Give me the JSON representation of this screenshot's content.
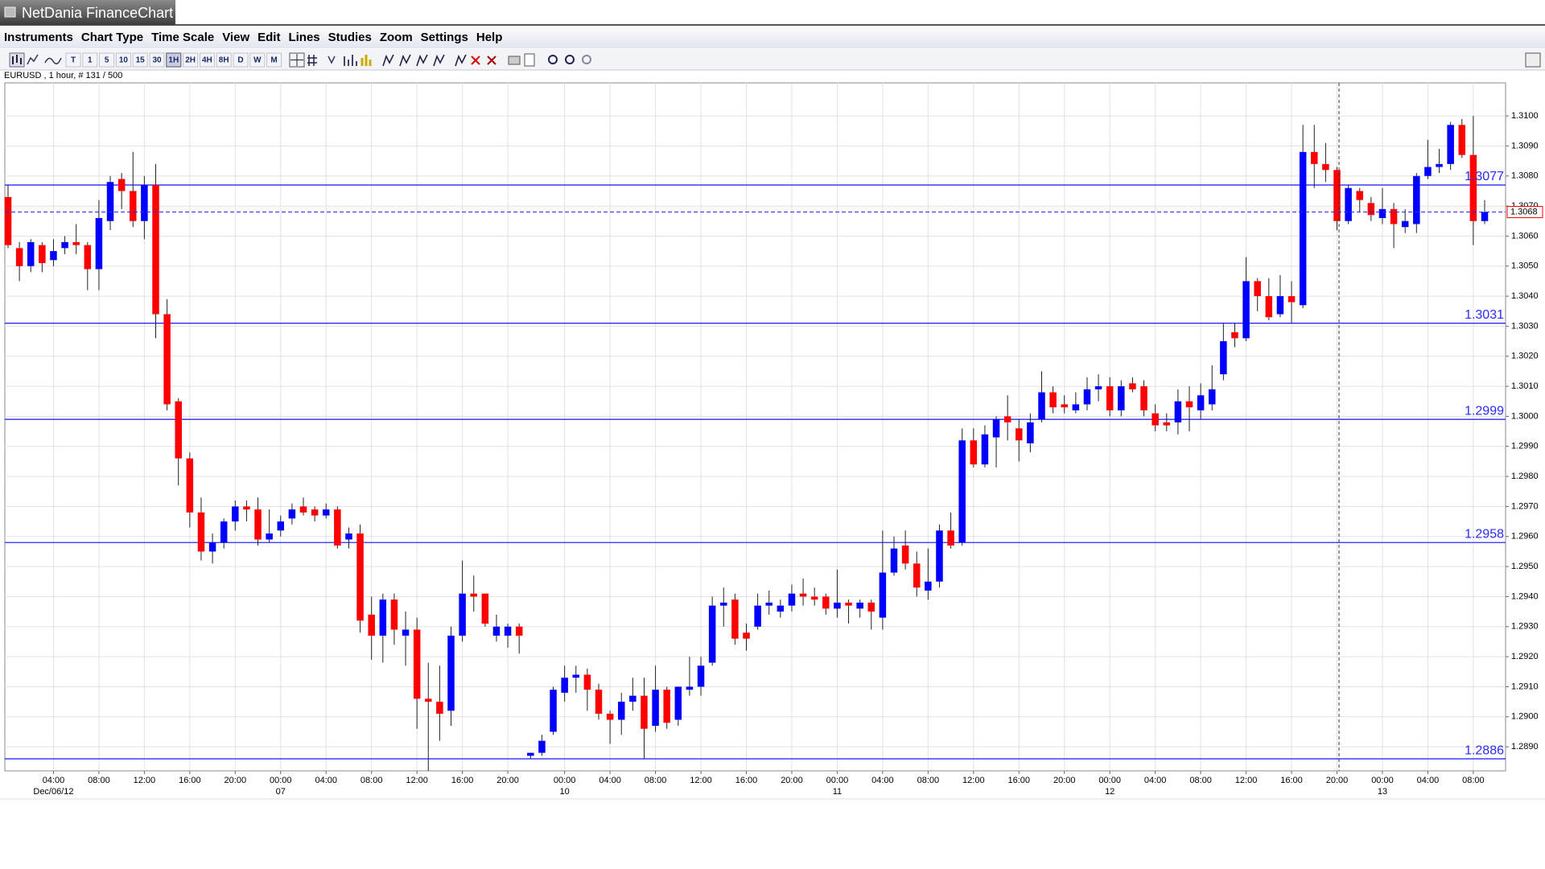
{
  "window": {
    "title": "NetDania FinanceChart"
  },
  "menu": [
    "Instruments",
    "Chart Type",
    "Time Scale",
    "View",
    "Edit",
    "Lines",
    "Studies",
    "Zoom",
    "Settings",
    "Help"
  ],
  "toolbar": {
    "timeframes": [
      "T",
      "1",
      "5",
      "10",
      "15",
      "30",
      "1H",
      "2H",
      "4H",
      "8H",
      "D",
      "W",
      "M"
    ]
  },
  "chart_info": "EURUSD , 1 hour, # 131 / 500",
  "chart_data": {
    "type": "candlestick",
    "up_color": "#0000ff",
    "down_color": "#ff0000",
    "level_color": "#2a2aff",
    "last_color": "#ff0000",
    "grid": true,
    "categories": [
      null,
      null,
      null,
      null,
      "04:00",
      null,
      null,
      null,
      "08:00",
      null,
      null,
      null,
      "12:00",
      null,
      null,
      null,
      "16:00",
      null,
      null,
      null,
      "20:00",
      null,
      null,
      null,
      "00:00",
      null,
      null,
      null,
      "04:00",
      null,
      null,
      null,
      "08:00",
      null,
      null,
      null,
      "12:00",
      null,
      null,
      null,
      "16:00",
      null,
      null,
      null,
      "20:00",
      null,
      null,
      null,
      null,
      "00:00",
      null,
      null,
      null,
      "04:00",
      null,
      null,
      null,
      "08:00",
      null,
      null,
      null,
      "12:00",
      null,
      null,
      null,
      "16:00",
      null,
      null,
      null,
      "20:00",
      null,
      null,
      null,
      "00:00",
      null,
      null,
      null,
      "04:00",
      null,
      null,
      null,
      "08:00",
      null,
      null,
      null,
      "12:00",
      null,
      null,
      null,
      "16:00",
      null,
      null,
      null,
      "20:00",
      null,
      null,
      null,
      "00:00",
      null,
      null,
      null,
      "04:00",
      null,
      null,
      null,
      "08:00",
      null,
      null,
      null,
      "12:00",
      null,
      null,
      null,
      "16:00",
      null,
      null,
      null,
      "20:00",
      null,
      null,
      null,
      "00:00",
      null,
      null,
      null,
      "04:00",
      null,
      null,
      null,
      "08:00",
      null
    ],
    "date_labels": [
      null,
      null,
      null,
      null,
      "Dec/06/12",
      null,
      null,
      null,
      null,
      null,
      null,
      null,
      null,
      null,
      null,
      null,
      null,
      null,
      null,
      null,
      null,
      null,
      null,
      null,
      "07",
      null,
      null,
      null,
      null,
      null,
      null,
      null,
      null,
      null,
      null,
      null,
      null,
      null,
      null,
      null,
      null,
      null,
      null,
      null,
      null,
      null,
      null,
      null,
      null,
      "10",
      null,
      null,
      null,
      null,
      null,
      null,
      null,
      null,
      null,
      null,
      null,
      null,
      null,
      null,
      null,
      null,
      null,
      null,
      null,
      null,
      null,
      null,
      null,
      "11",
      null,
      null,
      null,
      null,
      null,
      null,
      null,
      null,
      null,
      null,
      null,
      null,
      null,
      null,
      null,
      null,
      null,
      null,
      null,
      null,
      null,
      null,
      null,
      "12",
      null,
      null,
      null,
      null,
      null,
      null,
      null,
      null,
      null,
      null,
      null,
      null,
      null,
      null,
      null,
      null,
      null,
      null,
      null,
      null,
      null,
      null,
      null,
      "13",
      null,
      null,
      null,
      null,
      null,
      null,
      null,
      null,
      null
    ],
    "open": [
      1.3073,
      1.3056,
      1.305,
      1.3057,
      1.3052,
      1.3056,
      1.3058,
      1.3057,
      1.3049,
      1.3065,
      1.3079,
      1.3075,
      1.3065,
      1.3077,
      1.3034,
      1.3005,
      1.2986,
      1.2968,
      1.2955,
      1.2958,
      1.2965,
      1.297,
      1.2969,
      1.2959,
      1.2962,
      1.2966,
      1.297,
      1.2969,
      1.2967,
      1.2969,
      1.2959,
      1.2961,
      1.2934,
      1.2927,
      1.2939,
      1.2927,
      1.2929,
      1.2906,
      1.2905,
      1.2902,
      1.2927,
      1.2941,
      1.2941,
      1.2927,
      1.2927,
      1.293,
      1.2887,
      1.2888,
      1.2895,
      1.2908,
      1.2913,
      1.2914,
      1.2909,
      1.2901,
      1.2899,
      1.2905,
      1.2907,
      1.2897,
      1.2909,
      1.2899,
      1.2909,
      1.291,
      1.2918,
      1.2937,
      1.2939,
      1.2928,
      1.293,
      1.2937,
      1.2935,
      1.2937,
      1.2941,
      1.294,
      1.294,
      1.2936,
      1.2938,
      1.2936,
      1.2938,
      1.2933,
      1.2948,
      1.2957,
      1.2951,
      1.2942,
      1.2945,
      1.2962,
      1.2958,
      1.2992,
      1.2984,
      1.2993,
      1.3,
      1.2996,
      1.2991,
      1.2999,
      1.3008,
      1.3004,
      1.3002,
      1.3004,
      1.3009,
      1.301,
      1.3002,
      1.3011,
      1.301,
      1.3001,
      1.2998,
      1.2998,
      1.3005,
      1.3002,
      1.3004,
      1.3014,
      1.3028,
      1.3026,
      1.3045,
      1.304,
      1.3034,
      1.304,
      1.3037,
      1.3088,
      1.3084,
      1.3082,
      1.3065,
      1.3075,
      1.3071,
      1.3066,
      1.3069,
      1.3063,
      1.3064,
      1.308,
      1.3083,
      1.3084,
      1.3097,
      1.3087,
      1.3065
    ],
    "high": [
      1.3077,
      1.3058,
      1.3059,
      1.3058,
      1.3059,
      1.306,
      1.3064,
      1.3058,
      1.3072,
      1.308,
      1.3081,
      1.3088,
      1.308,
      1.3084,
      1.3039,
      1.3006,
      1.2988,
      1.2973,
      1.2961,
      1.2966,
      1.2972,
      1.2972,
      1.2973,
      1.2969,
      1.2967,
      1.2971,
      1.2973,
      1.297,
      1.2971,
      1.297,
      1.2963,
      1.2964,
      1.294,
      1.2941,
      1.2941,
      1.2935,
      1.2933,
      1.2918,
      1.2917,
      1.293,
      1.2952,
      1.2947,
      1.2941,
      1.2934,
      1.2931,
      1.2931,
      1.2888,
      1.2894,
      1.291,
      1.2917,
      1.2917,
      1.2916,
      1.2911,
      1.2902,
      1.2908,
      1.2913,
      1.2913,
      1.2917,
      1.291,
      1.291,
      1.292,
      1.292,
      1.294,
      1.2943,
      1.2941,
      1.2931,
      1.2941,
      1.2942,
      1.2939,
      1.2944,
      1.2946,
      1.2943,
      1.2941,
      1.2949,
      1.2939,
      1.2939,
      1.2939,
      1.2962,
      1.296,
      1.2962,
      1.2955,
      1.2956,
      1.2964,
      1.2968,
      1.2996,
      1.2996,
      1.2997,
      1.3,
      1.3007,
      1.2999,
      1.3001,
      1.3015,
      1.301,
      1.3007,
      1.3008,
      1.3013,
      1.3014,
      1.3013,
      1.3012,
      1.3013,
      1.3012,
      1.3004,
      1.3001,
      1.3009,
      1.301,
      1.3011,
      1.3017,
      1.3031,
      1.3031,
      1.3053,
      1.3046,
      1.3046,
      1.3047,
      1.3045,
      1.3097,
      1.3097,
      1.3091,
      1.3083,
      1.3077,
      1.3076,
      1.3073,
      1.3076,
      1.3071,
      1.3069,
      1.3081,
      1.3092,
      1.3089,
      1.3098,
      1.3099,
      1.31,
      1.3072
    ],
    "low": [
      1.3056,
      1.3045,
      1.3048,
      1.3048,
      1.305,
      1.3054,
      1.3054,
      1.3042,
      1.3042,
      1.3062,
      1.3069,
      1.3063,
      1.3059,
      1.3026,
      1.3002,
      1.2977,
      1.2963,
      1.2952,
      1.2951,
      1.2956,
      1.2962,
      1.2965,
      1.2957,
      1.2958,
      1.296,
      1.2964,
      1.2967,
      1.2965,
      1.2966,
      1.2956,
      1.2956,
      1.2928,
      1.2919,
      1.2918,
      1.2924,
      1.2917,
      1.2896,
      1.2882,
      1.2892,
      1.2897,
      1.2925,
      1.2935,
      1.293,
      1.2925,
      1.2923,
      1.2921,
      1.2886,
      1.2887,
      1.2894,
      1.2905,
      1.2908,
      1.2902,
      1.2899,
      1.2891,
      1.2894,
      1.2902,
      1.2886,
      1.2895,
      1.2896,
      1.2897,
      1.2907,
      1.2907,
      1.2917,
      1.293,
      1.2924,
      1.2922,
      1.2929,
      1.2934,
      1.2933,
      1.2935,
      1.2937,
      1.2937,
      1.2934,
      1.2933,
      1.2931,
      1.2933,
      1.2929,
      1.2929,
      1.2947,
      1.2949,
      1.294,
      1.2939,
      1.2943,
      1.2956,
      1.2957,
      1.2983,
      1.2983,
      1.2983,
      1.2992,
      1.2985,
      1.2988,
      1.2998,
      1.3001,
      1.3001,
      1.3001,
      1.3002,
      1.3005,
      1.3,
      1.3,
      1.3008,
      1.3,
      1.2995,
      1.2995,
      1.2994,
      1.2995,
      1.2999,
      1.3002,
      1.3012,
      1.3023,
      1.3025,
      1.3035,
      1.3032,
      1.3033,
      1.3031,
      1.3036,
      1.3076,
      1.3078,
      1.3062,
      1.3064,
      1.3068,
      1.3065,
      1.3064,
      1.3056,
      1.3061,
      1.3061,
      1.3079,
      1.3081,
      1.3082,
      1.3086,
      1.3057,
      1.3064
    ],
    "close": [
      1.3057,
      1.305,
      1.3058,
      1.3051,
      1.3055,
      1.3058,
      1.3057,
      1.3049,
      1.3066,
      1.3078,
      1.3075,
      1.3065,
      1.3077,
      1.3034,
      1.3004,
      1.2986,
      1.2968,
      1.2955,
      1.2958,
      1.2965,
      1.297,
      1.2969,
      1.2959,
      1.2961,
      1.2965,
      1.2969,
      1.2968,
      1.2967,
      1.2969,
      1.2957,
      1.2961,
      1.2932,
      1.2927,
      1.2939,
      1.2929,
      1.2929,
      1.2906,
      1.2905,
      1.2901,
      1.2927,
      1.2941,
      1.294,
      1.2931,
      1.293,
      1.293,
      1.2927,
      1.2888,
      1.2892,
      1.2909,
      1.2913,
      1.2914,
      1.2909,
      1.2901,
      1.2899,
      1.2905,
      1.2907,
      1.2896,
      1.2909,
      1.2898,
      1.291,
      1.291,
      1.2917,
      1.2937,
      1.2938,
      1.2926,
      1.2926,
      1.2937,
      1.2938,
      1.2937,
      1.2941,
      1.294,
      1.2939,
      1.2936,
      1.2938,
      1.2937,
      1.2938,
      1.2935,
      1.2948,
      1.2956,
      1.2951,
      1.2943,
      1.2945,
      1.2962,
      1.2957,
      1.2992,
      1.2984,
      1.2994,
      1.2999,
      1.2998,
      1.2992,
      1.2998,
      1.3008,
      1.3003,
      1.3003,
      1.3004,
      1.3009,
      1.301,
      1.3002,
      1.301,
      1.3009,
      1.3002,
      1.2997,
      1.2997,
      1.3005,
      1.3003,
      1.3007,
      1.3009,
      1.3025,
      1.3026,
      1.3045,
      1.304,
      1.3033,
      1.304,
      1.3038,
      1.3088,
      1.3084,
      1.3082,
      1.3065,
      1.3076,
      1.3072,
      1.3067,
      1.3069,
      1.3064,
      1.3065,
      1.308,
      1.3083,
      1.3084,
      1.3097,
      1.3087,
      1.3065,
      1.3068
    ],
    "levels": [
      1.3077,
      1.3031,
      1.2999,
      1.2958,
      1.2886
    ],
    "last_price": 1.3068,
    "ylim": [
      1.2882,
      1.3111
    ],
    "yticks": [
      {
        "value": 1.289,
        "label": "1.2890"
      },
      {
        "value": 1.29,
        "label": "1.2900"
      },
      {
        "value": 1.291,
        "label": "1.2910"
      },
      {
        "value": 1.292,
        "label": "1.2920"
      },
      {
        "value": 1.293,
        "label": "1.2930"
      },
      {
        "value": 1.294,
        "label": "1.2940"
      },
      {
        "value": 1.295,
        "label": "1.2950"
      },
      {
        "value": 1.296,
        "label": "1.2960"
      },
      {
        "value": 1.297,
        "label": "1.2970"
      },
      {
        "value": 1.298,
        "label": "1.2980"
      },
      {
        "value": 1.299,
        "label": "1.2990"
      },
      {
        "value": 1.3,
        "label": "1.3000"
      },
      {
        "value": 1.301,
        "label": "1.3010"
      },
      {
        "value": 1.302,
        "label": "1.3020"
      },
      {
        "value": 1.303,
        "label": "1.3030"
      },
      {
        "value": 1.304,
        "label": "1.3040"
      },
      {
        "value": 1.305,
        "label": "1.3050"
      },
      {
        "value": 1.306,
        "label": "1.3060"
      },
      {
        "value": 1.307,
        "label": "1.3070"
      },
      {
        "value": 1.308,
        "label": "1.3080"
      },
      {
        "value": 1.309,
        "label": "1.3090"
      },
      {
        "value": 1.31,
        "label": "1.3100"
      }
    ]
  }
}
